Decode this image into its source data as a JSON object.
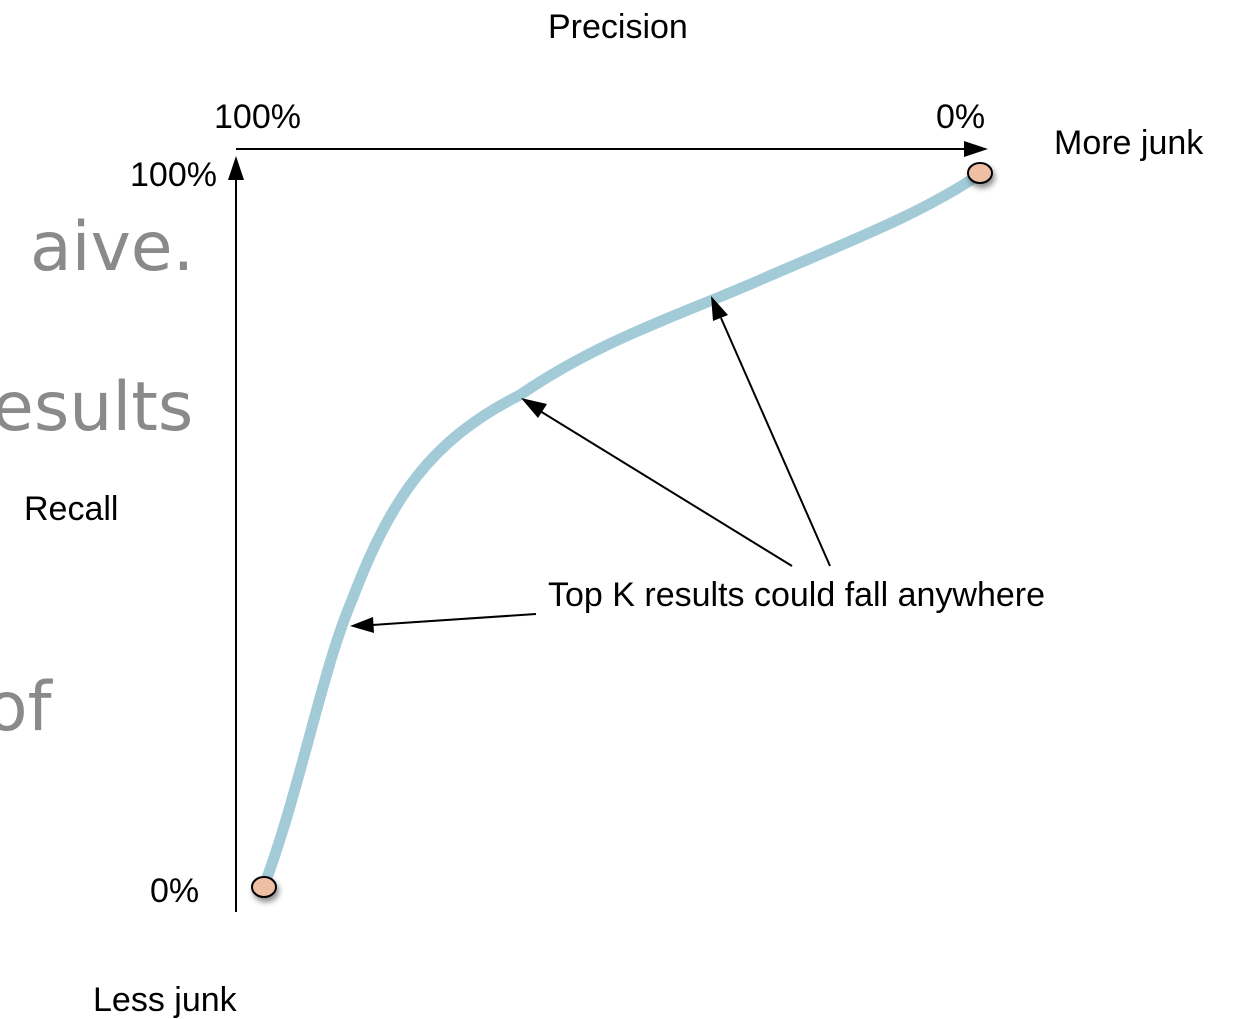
{
  "background_fragments": [
    "aive.",
    "esults",
    "of"
  ],
  "axes": {
    "precision_title": "Precision",
    "recall_title": "Recall",
    "precision_start": "100%",
    "precision_end": "0%",
    "recall_top": "100%",
    "recall_bottom": "0%"
  },
  "notes": {
    "more_junk": "More junk",
    "less_junk": "Less junk"
  },
  "callout": "Top K results could fall anywhere",
  "colors": {
    "curve": "#a3cbd7",
    "endpoint_fill": "#efbfa4",
    "line": "#000000",
    "background_text": "#8a8a8a"
  }
}
